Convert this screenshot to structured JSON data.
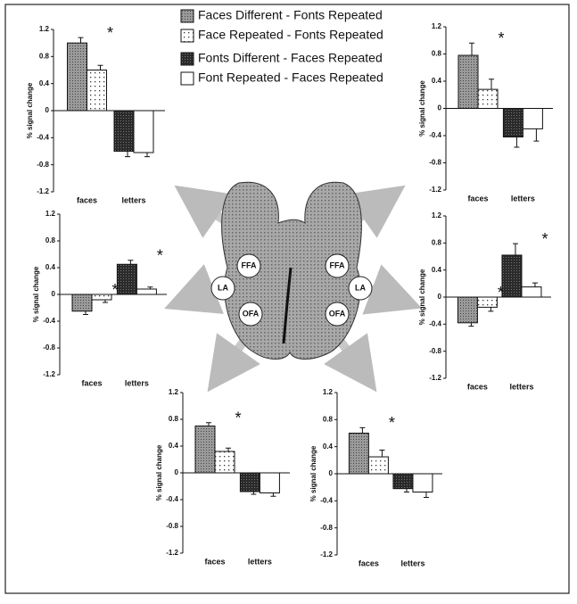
{
  "legend": [
    {
      "name": "Faces Different - Fonts Repeated",
      "fill": "dense"
    },
    {
      "name": "Face Repeated - Fonts Repeated",
      "fill": "sparse"
    },
    {
      "name": "Fonts Different - Faces Repeated",
      "fill": "dark"
    },
    {
      "name": "Font Repeated - Faces Repeated",
      "fill": "white"
    }
  ],
  "brain": {
    "labels": [
      "FFA",
      "FFA",
      "LA",
      "LA",
      "OFA",
      "OFA"
    ]
  },
  "chart_data": [
    {
      "type": "bar",
      "ylabel": "% signal change",
      "categories": [
        "faces",
        "letters"
      ],
      "ylim": [
        -1.2,
        1.2
      ],
      "yticks": [
        1.2,
        0.8,
        0.4,
        0,
        -0.4,
        -0.8,
        -1.2
      ],
      "series": [
        {
          "values": [
            1.0,
            null
          ],
          "errors": [
            0.08,
            null
          ]
        },
        {
          "values": [
            0.6,
            null
          ],
          "errors": [
            0.07,
            null
          ]
        },
        {
          "values": [
            null,
            -0.6
          ],
          "errors": [
            null,
            0.08
          ]
        },
        {
          "values": [
            null,
            -0.62
          ],
          "errors": [
            null,
            0.06
          ]
        }
      ],
      "annotations": [
        {
          "text": "*",
          "category": 0
        }
      ]
    },
    {
      "type": "bar",
      "ylabel": "% signal change",
      "categories": [
        "faces",
        "letters"
      ],
      "ylim": [
        -1.2,
        1.2
      ],
      "yticks": [
        1.2,
        0.8,
        0.4,
        0,
        -0.4,
        -0.8,
        -1.2
      ],
      "series": [
        {
          "values": [
            0.78,
            null
          ],
          "errors": [
            0.18,
            null
          ]
        },
        {
          "values": [
            0.28,
            null
          ],
          "errors": [
            0.15,
            null
          ]
        },
        {
          "values": [
            null,
            -0.42
          ],
          "errors": [
            null,
            0.15
          ]
        },
        {
          "values": [
            null,
            -0.3
          ],
          "errors": [
            null,
            0.18
          ]
        }
      ],
      "annotations": [
        {
          "text": "*",
          "category": 0
        }
      ]
    },
    {
      "type": "bar",
      "ylabel": "% signal change",
      "categories": [
        "faces",
        "letters"
      ],
      "ylim": [
        -1.2,
        1.2
      ],
      "yticks": [
        1.2,
        0.8,
        0.4,
        0,
        -0.4,
        -0.8,
        -1.2
      ],
      "series": [
        {
          "values": [
            -0.25,
            null
          ],
          "errors": [
            0.05,
            null
          ]
        },
        {
          "values": [
            -0.08,
            null
          ],
          "errors": [
            0.04,
            null
          ]
        },
        {
          "values": [
            null,
            0.45
          ],
          "errors": [
            null,
            0.06
          ]
        },
        {
          "values": [
            null,
            0.08
          ],
          "errors": [
            null,
            0.03
          ]
        }
      ],
      "annotations": [
        {
          "text": "*",
          "category": 0
        },
        {
          "text": "*",
          "category": 1
        }
      ]
    },
    {
      "type": "bar",
      "ylabel": "% signal change",
      "categories": [
        "faces",
        "letters"
      ],
      "ylim": [
        -1.2,
        1.2
      ],
      "yticks": [
        1.2,
        0.8,
        0.4,
        0,
        -0.4,
        -0.8,
        -1.2
      ],
      "series": [
        {
          "values": [
            -0.38,
            null
          ],
          "errors": [
            0.05,
            null
          ]
        },
        {
          "values": [
            -0.15,
            null
          ],
          "errors": [
            0.06,
            null
          ]
        },
        {
          "values": [
            null,
            0.62
          ],
          "errors": [
            null,
            0.17
          ]
        },
        {
          "values": [
            null,
            0.15
          ],
          "errors": [
            null,
            0.06
          ]
        }
      ],
      "annotations": [
        {
          "text": "*",
          "category": 0
        },
        {
          "text": "*",
          "category": 1
        }
      ]
    },
    {
      "type": "bar",
      "ylabel": "% signal change",
      "categories": [
        "faces",
        "letters"
      ],
      "ylim": [
        -1.2,
        1.2
      ],
      "yticks": [
        1.2,
        0.8,
        0.4,
        0,
        -0.4,
        -0.8,
        -1.2
      ],
      "series": [
        {
          "values": [
            0.7,
            null
          ],
          "errors": [
            0.05,
            null
          ]
        },
        {
          "values": [
            0.32,
            null
          ],
          "errors": [
            0.05,
            null
          ]
        },
        {
          "values": [
            null,
            -0.28
          ],
          "errors": [
            null,
            0.04
          ]
        },
        {
          "values": [
            null,
            -0.3
          ],
          "errors": [
            null,
            0.05
          ]
        }
      ],
      "annotations": [
        {
          "text": "*",
          "category": 0
        }
      ]
    },
    {
      "type": "bar",
      "ylabel": "% signal change",
      "categories": [
        "faces",
        "letters"
      ],
      "ylim": [
        -1.2,
        1.2
      ],
      "yticks": [
        1.2,
        0.8,
        0.4,
        0,
        -0.4,
        -0.8,
        -1.2
      ],
      "series": [
        {
          "values": [
            0.6,
            null
          ],
          "errors": [
            0.08,
            null
          ]
        },
        {
          "values": [
            0.25,
            null
          ],
          "errors": [
            0.1,
            null
          ]
        },
        {
          "values": [
            null,
            -0.22
          ],
          "errors": [
            null,
            0.05
          ]
        },
        {
          "values": [
            null,
            -0.27
          ],
          "errors": [
            null,
            0.08
          ]
        }
      ],
      "annotations": [
        {
          "text": "*",
          "category": 0
        }
      ]
    }
  ]
}
